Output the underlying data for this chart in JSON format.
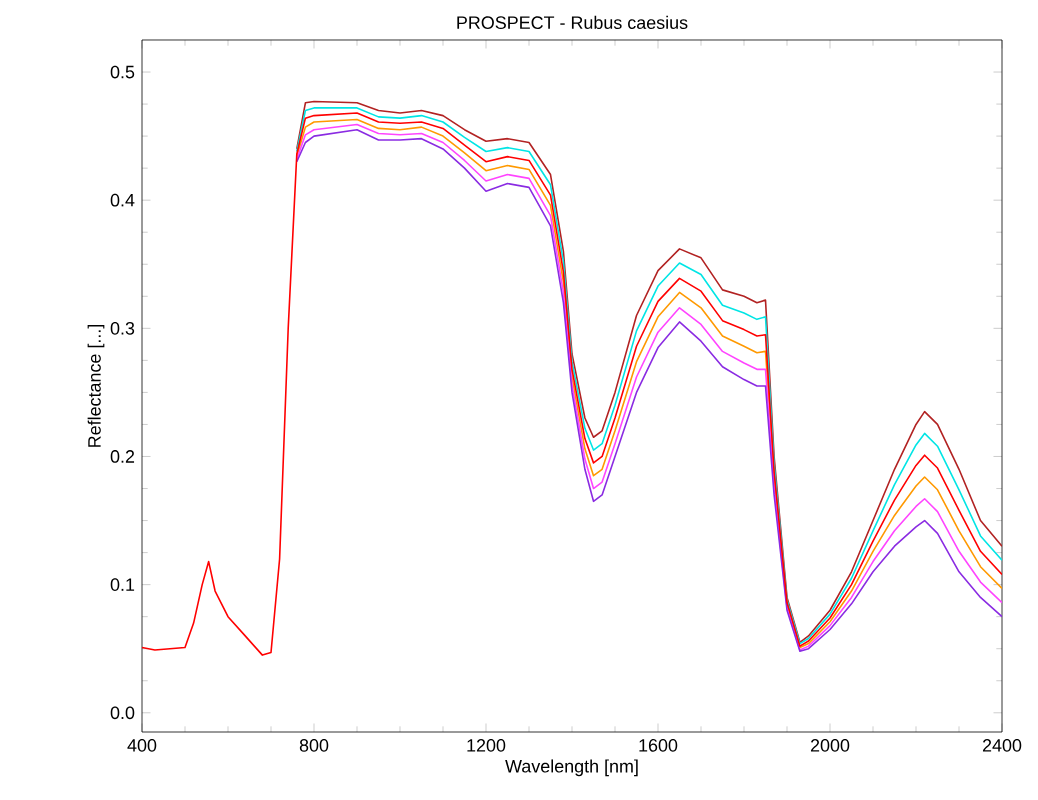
{
  "chart_data": {
    "type": "line",
    "title": "PROSPECT - Rubus caesius",
    "xlabel": "Wavelength [nm]",
    "ylabel": "Reflectance [...]",
    "x": [
      400,
      430,
      500,
      520,
      540,
      555,
      570,
      600,
      640,
      680,
      700,
      720,
      740,
      760,
      780,
      800,
      900,
      950,
      1000,
      1050,
      1100,
      1150,
      1200,
      1250,
      1300,
      1350,
      1380,
      1400,
      1430,
      1450,
      1470,
      1500,
      1550,
      1600,
      1650,
      1700,
      1750,
      1800,
      1830,
      1850,
      1870,
      1900,
      1930,
      1950,
      2000,
      2050,
      2100,
      2150,
      2200,
      2220,
      2250,
      2300,
      2350,
      2400
    ],
    "series": [
      {
        "color": "#b22222",
        "values": [
          null,
          null,
          null,
          null,
          null,
          null,
          null,
          null,
          null,
          null,
          null,
          null,
          null,
          0.44,
          0.476,
          0.477,
          0.476,
          0.47,
          0.468,
          0.47,
          0.466,
          0.455,
          0.446,
          0.448,
          0.445,
          0.42,
          0.36,
          0.28,
          0.23,
          0.215,
          0.22,
          0.25,
          0.31,
          0.345,
          0.362,
          0.355,
          0.33,
          0.325,
          0.32,
          0.322,
          0.2,
          0.09,
          0.055,
          0.06,
          0.08,
          0.11,
          0.15,
          0.19,
          0.225,
          0.235,
          0.225,
          0.19,
          0.15,
          0.13
        ]
      },
      {
        "color": "#00e5e5",
        "values": [
          null,
          null,
          null,
          null,
          null,
          null,
          null,
          null,
          null,
          null,
          null,
          null,
          null,
          0.438,
          0.47,
          0.472,
          0.472,
          0.465,
          0.464,
          0.466,
          0.461,
          0.449,
          0.438,
          0.441,
          0.438,
          0.412,
          0.352,
          0.274,
          0.222,
          0.205,
          0.21,
          0.24,
          0.298,
          0.333,
          0.351,
          0.342,
          0.318,
          0.312,
          0.307,
          0.309,
          0.194,
          0.088,
          0.054,
          0.058,
          0.077,
          0.105,
          0.142,
          0.178,
          0.209,
          0.218,
          0.208,
          0.174,
          0.138,
          0.119
        ]
      },
      {
        "color": "#ff9900",
        "values": [
          null,
          null,
          null,
          null,
          null,
          null,
          null,
          null,
          null,
          null,
          null,
          null,
          null,
          0.434,
          0.457,
          0.461,
          0.463,
          0.456,
          0.455,
          0.457,
          0.45,
          0.437,
          0.423,
          0.427,
          0.424,
          0.396,
          0.336,
          0.262,
          0.206,
          0.185,
          0.19,
          0.22,
          0.274,
          0.309,
          0.328,
          0.316,
          0.294,
          0.286,
          0.281,
          0.282,
          0.182,
          0.084,
          0.051,
          0.054,
          0.071,
          0.095,
          0.126,
          0.154,
          0.177,
          0.184,
          0.174,
          0.142,
          0.114,
          0.097
        ]
      },
      {
        "color": "#ff44ff",
        "values": [
          null,
          null,
          null,
          null,
          null,
          null,
          null,
          null,
          null,
          null,
          null,
          null,
          null,
          0.432,
          0.451,
          0.455,
          0.459,
          0.452,
          0.451,
          0.452,
          0.445,
          0.431,
          0.415,
          0.42,
          0.417,
          0.388,
          0.328,
          0.256,
          0.198,
          0.175,
          0.18,
          0.21,
          0.262,
          0.297,
          0.316,
          0.303,
          0.282,
          0.273,
          0.268,
          0.268,
          0.176,
          0.082,
          0.049,
          0.052,
          0.068,
          0.09,
          0.118,
          0.142,
          0.161,
          0.167,
          0.157,
          0.126,
          0.102,
          0.086
        ]
      },
      {
        "color": "#8a2be2",
        "values": [
          null,
          null,
          null,
          null,
          null,
          null,
          null,
          null,
          null,
          null,
          null,
          null,
          null,
          0.43,
          0.445,
          0.45,
          0.455,
          0.447,
          0.447,
          0.448,
          0.44,
          0.425,
          0.407,
          0.413,
          0.41,
          0.38,
          0.32,
          0.25,
          0.19,
          0.165,
          0.17,
          0.2,
          0.25,
          0.285,
          0.305,
          0.29,
          0.27,
          0.26,
          0.255,
          0.255,
          0.17,
          0.08,
          0.048,
          0.05,
          0.065,
          0.085,
          0.11,
          0.13,
          0.145,
          0.15,
          0.14,
          0.11,
          0.09,
          0.075
        ]
      },
      {
        "color": "#ff0000",
        "values": [
          0.051,
          0.049,
          0.051,
          0.07,
          0.1,
          0.118,
          0.095,
          0.075,
          0.06,
          0.045,
          0.047,
          0.12,
          0.3,
          0.436,
          0.464,
          0.466,
          0.468,
          0.461,
          0.46,
          0.461,
          0.456,
          0.443,
          0.43,
          0.434,
          0.431,
          0.404,
          0.344,
          0.268,
          0.214,
          0.195,
          0.2,
          0.23,
          0.286,
          0.321,
          0.339,
          0.329,
          0.306,
          0.299,
          0.294,
          0.295,
          0.188,
          0.086,
          0.052,
          0.056,
          0.074,
          0.1,
          0.134,
          0.166,
          0.193,
          0.201,
          0.191,
          0.158,
          0.126,
          0.108
        ]
      }
    ],
    "xlim": [
      400,
      2400
    ],
    "xticks": [
      400,
      800,
      1200,
      1600,
      2000,
      2400
    ],
    "ylim": [
      -0.015,
      0.525
    ],
    "yticks": [
      {
        "value": 0,
        "label": "0.0"
      },
      {
        "value": 0.1,
        "label": "0.1"
      },
      {
        "value": 0.2,
        "label": "0.2"
      },
      {
        "value": 0.3,
        "label": "0.3"
      },
      {
        "value": 0.4,
        "label": "0.4"
      },
      {
        "value": 0.5,
        "label": "0.5"
      }
    ]
  }
}
